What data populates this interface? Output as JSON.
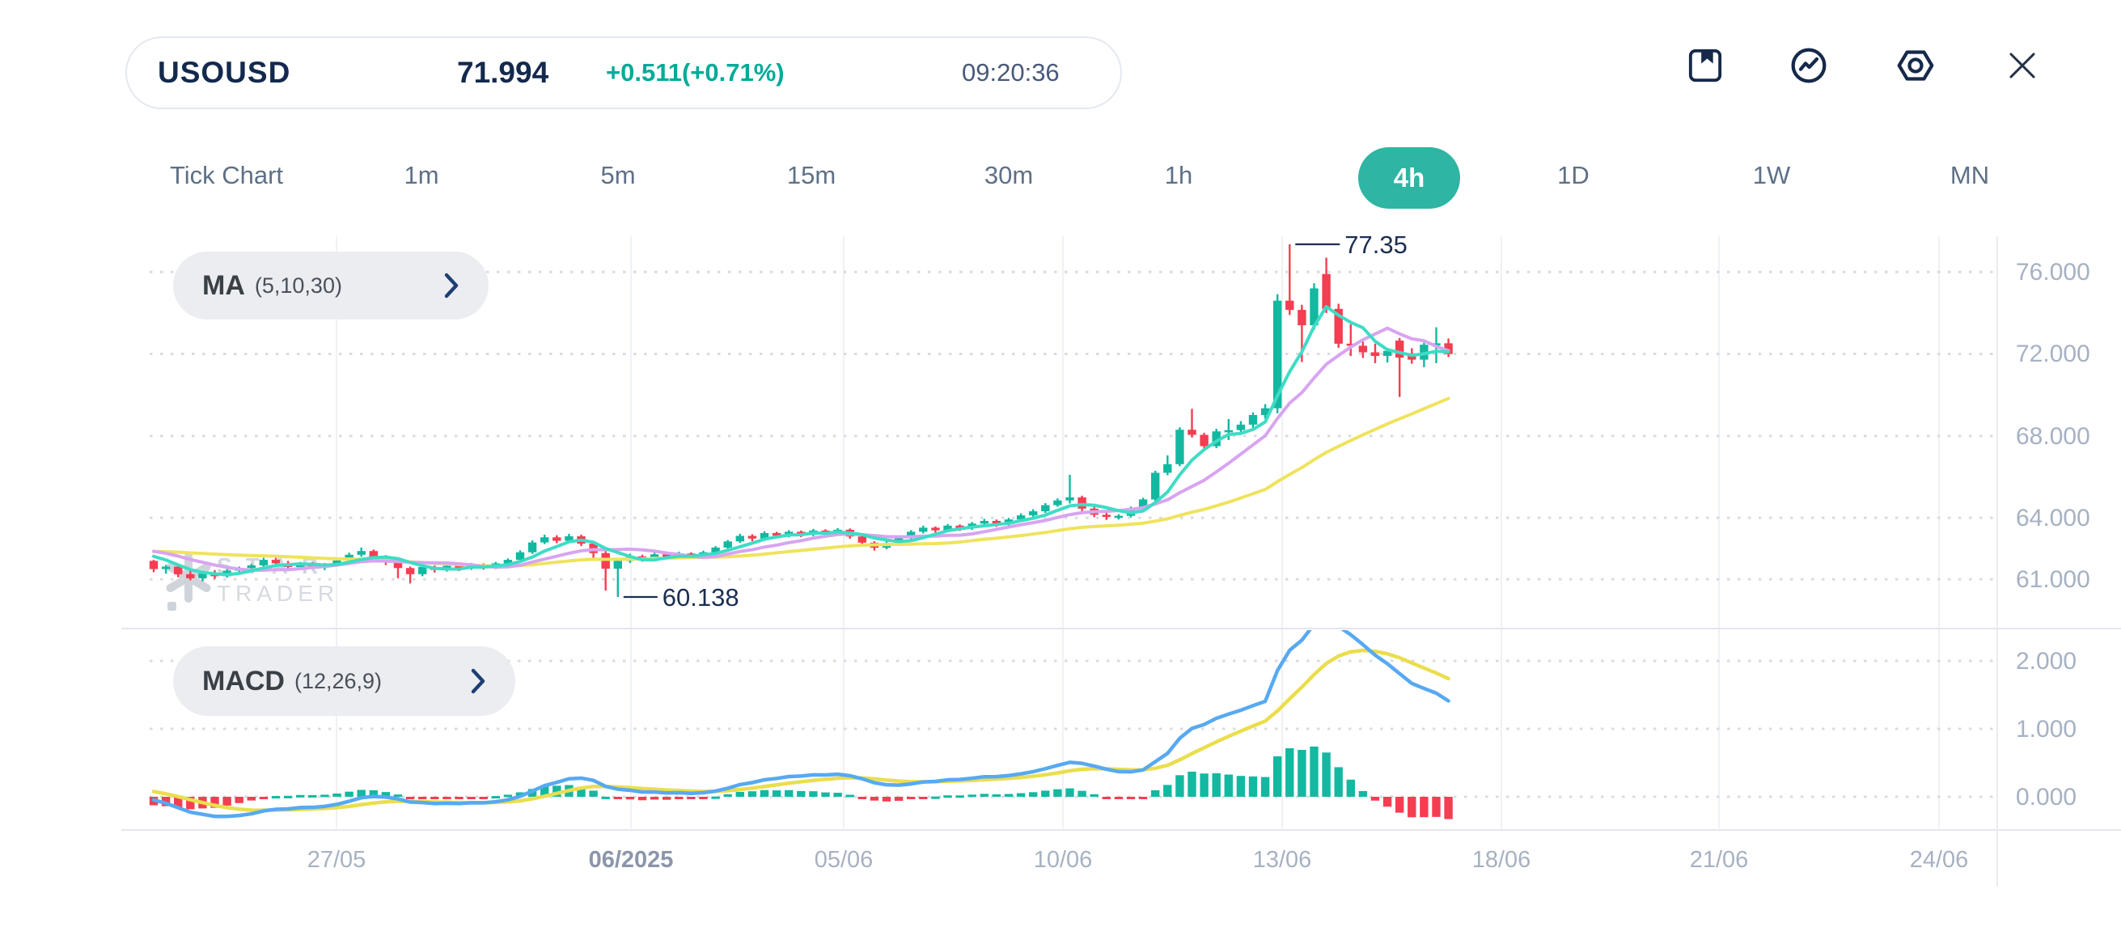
{
  "header": {
    "symbol": "USOUSD",
    "price": "71.994",
    "change": "+0.511(+0.71%)",
    "time": "09:20:36"
  },
  "toolbar": {
    "icons": [
      "bookmark-icon",
      "indicator-circle-icon",
      "settings-hexagon-icon",
      "close-icon"
    ]
  },
  "timeframes": {
    "items": [
      "Tick Chart",
      "1m",
      "5m",
      "15m",
      "30m",
      "1h",
      "4h",
      "1D",
      "1W",
      "MN"
    ],
    "selected": "4h"
  },
  "indicators": {
    "ma": {
      "label": "MA",
      "params": "(5,10,30)"
    },
    "macd": {
      "label": "MACD",
      "params": "(12,26,9)"
    }
  },
  "watermark": {
    "line1": "STAR",
    "line2": "TRADER"
  },
  "chart_data": {
    "type": "candlestick",
    "symbol": "USOUSD",
    "timeframe": "4h",
    "legend": "MA(5,10,30) overlay, MACD(12,26,9) sub-chart",
    "price_axis_ticks": [
      "76.000",
      "72.000",
      "68.000",
      "64.000",
      "61.000"
    ],
    "macd_axis_ticks": [
      "2.000",
      "1.000",
      "0.000"
    ],
    "x_axis_labels": [
      "27/05",
      "06/2025",
      "05/06",
      "10/06",
      "13/06",
      "18/06",
      "21/06",
      "24/06"
    ],
    "high_label": "77.35",
    "low_label": "60.138",
    "ma_periods": [
      5,
      10,
      30
    ],
    "macd_params": [
      12,
      26,
      9
    ],
    "colors": {
      "up": "#13b8a1",
      "down": "#f53e51",
      "ma5": "#3edcc5",
      "ma10": "#d8a4f0",
      "ma30": "#efe35e",
      "macd_line": "#57a9f2",
      "signal_line": "#eade4d",
      "grid_dotted": "#d8dce2",
      "grid_vertical": "#eef1f4",
      "separator": "#e3e7ec",
      "axis_line": "#e9ecf0",
      "annotation": "#1b2e52"
    },
    "lead_in_closes": [
      61.9,
      61.95,
      62.0,
      62.1,
      62.05,
      62.15,
      62.2,
      62.3,
      62.25,
      62.35,
      62.3,
      62.4,
      62.45,
      62.5,
      62.45,
      62.55,
      62.6,
      62.55,
      62.65,
      62.6,
      62.7,
      62.65,
      62.6,
      62.7,
      62.6,
      62.55,
      62.5,
      62.45,
      62.2,
      61.95
    ],
    "candles": [
      [
        61.9,
        61.95,
        61.35,
        61.5
      ],
      [
        61.5,
        61.7,
        61.28,
        61.62
      ],
      [
        61.62,
        61.68,
        61.1,
        61.25
      ],
      [
        61.25,
        61.42,
        60.95,
        61.05
      ],
      [
        61.05,
        61.35,
        60.9,
        61.28
      ],
      [
        61.28,
        61.45,
        61.02,
        61.15
      ],
      [
        61.15,
        61.5,
        61.08,
        61.42
      ],
      [
        61.42,
        61.62,
        61.3,
        61.55
      ],
      [
        61.55,
        61.75,
        61.42,
        61.68
      ],
      [
        61.68,
        62.05,
        61.6,
        61.95
      ],
      [
        61.95,
        62.05,
        61.68,
        61.78
      ],
      [
        61.78,
        61.9,
        61.5,
        61.6
      ],
      [
        61.6,
        61.85,
        61.52,
        61.76
      ],
      [
        61.76,
        61.85,
        61.5,
        61.6
      ],
      [
        61.6,
        61.8,
        61.45,
        61.72
      ],
      [
        61.72,
        62.0,
        61.64,
        61.92
      ],
      [
        61.92,
        62.3,
        61.85,
        62.2
      ],
      [
        62.2,
        62.55,
        62.1,
        62.38
      ],
      [
        62.38,
        62.45,
        62.0,
        62.1
      ],
      [
        62.1,
        62.18,
        61.7,
        61.82
      ],
      [
        61.82,
        61.9,
        61.05,
        61.55
      ],
      [
        61.55,
        61.62,
        60.8,
        61.25
      ],
      [
        61.25,
        61.7,
        61.15,
        61.6
      ],
      [
        61.6,
        61.68,
        61.33,
        61.46
      ],
      [
        61.46,
        61.75,
        61.38,
        61.66
      ],
      [
        61.66,
        61.72,
        61.4,
        61.54
      ],
      [
        61.54,
        61.8,
        61.46,
        61.72
      ],
      [
        61.72,
        61.78,
        61.47,
        61.58
      ],
      [
        61.58,
        61.85,
        61.5,
        61.78
      ],
      [
        61.78,
        62.02,
        61.7,
        61.95
      ],
      [
        61.95,
        62.42,
        61.88,
        62.32
      ],
      [
        62.32,
        62.9,
        62.24,
        62.8
      ],
      [
        62.8,
        63.18,
        62.72,
        63.05
      ],
      [
        63.05,
        63.15,
        62.76,
        62.88
      ],
      [
        62.88,
        63.22,
        62.8,
        63.1
      ],
      [
        63.1,
        63.18,
        62.62,
        62.74
      ],
      [
        62.74,
        62.85,
        61.95,
        62.28
      ],
      [
        62.28,
        62.38,
        60.45,
        61.52
      ],
      [
        61.52,
        62.0,
        60.138,
        61.9
      ],
      [
        61.9,
        62.25,
        61.8,
        62.12
      ],
      [
        62.12,
        62.2,
        61.86,
        61.97
      ],
      [
        61.97,
        62.3,
        61.9,
        62.22
      ],
      [
        62.22,
        62.3,
        61.96,
        62.07
      ],
      [
        62.07,
        62.35,
        62.0,
        62.26
      ],
      [
        62.26,
        62.32,
        62.0,
        62.11
      ],
      [
        62.11,
        62.4,
        62.04,
        62.32
      ],
      [
        62.32,
        62.62,
        62.25,
        62.55
      ],
      [
        62.55,
        62.92,
        62.48,
        62.85
      ],
      [
        62.85,
        63.22,
        62.78,
        63.12
      ],
      [
        63.12,
        63.2,
        62.86,
        62.99
      ],
      [
        62.99,
        63.35,
        62.91,
        63.26
      ],
      [
        63.26,
        63.32,
        63.0,
        63.13
      ],
      [
        63.13,
        63.4,
        63.05,
        63.32
      ],
      [
        63.32,
        63.38,
        63.06,
        63.19
      ],
      [
        63.19,
        63.46,
        63.11,
        63.38
      ],
      [
        63.38,
        63.44,
        63.1,
        63.23
      ],
      [
        63.23,
        63.5,
        63.15,
        63.42
      ],
      [
        63.42,
        63.48,
        62.98,
        63.09
      ],
      [
        63.09,
        63.16,
        62.68,
        62.79
      ],
      [
        62.79,
        62.86,
        62.4,
        62.54
      ],
      [
        62.54,
        62.85,
        62.47,
        62.76
      ],
      [
        62.76,
        63.1,
        62.69,
        63.02
      ],
      [
        63.02,
        63.4,
        62.94,
        63.32
      ],
      [
        63.32,
        63.62,
        63.24,
        63.52
      ],
      [
        63.52,
        63.58,
        63.26,
        63.39
      ],
      [
        63.39,
        63.7,
        63.31,
        63.62
      ],
      [
        63.62,
        63.68,
        63.36,
        63.49
      ],
      [
        63.49,
        63.8,
        63.41,
        63.72
      ],
      [
        63.72,
        63.95,
        63.64,
        63.85
      ],
      [
        63.85,
        63.92,
        63.56,
        63.69
      ],
      [
        63.69,
        64.0,
        63.61,
        63.92
      ],
      [
        63.92,
        64.22,
        63.84,
        64.12
      ],
      [
        64.12,
        64.42,
        64.04,
        64.32
      ],
      [
        64.32,
        64.72,
        64.24,
        64.62
      ],
      [
        64.62,
        64.95,
        64.54,
        64.85
      ],
      [
        64.85,
        66.1,
        64.7,
        65.0
      ],
      [
        65.0,
        65.08,
        64.33,
        64.45
      ],
      [
        64.45,
        64.55,
        64.03,
        64.15
      ],
      [
        64.15,
        64.25,
        63.9,
        64.05
      ],
      [
        64.05,
        64.18,
        63.92,
        64.1
      ],
      [
        64.1,
        64.55,
        64.02,
        64.48
      ],
      [
        64.48,
        64.98,
        64.4,
        64.9
      ],
      [
        64.9,
        66.3,
        64.82,
        66.2
      ],
      [
        66.2,
        67.05,
        66.08,
        66.62
      ],
      [
        66.62,
        68.42,
        66.52,
        68.3
      ],
      [
        68.3,
        69.32,
        67.92,
        68.05
      ],
      [
        68.05,
        68.15,
        67.33,
        67.5
      ],
      [
        67.5,
        68.35,
        67.4,
        68.22
      ],
      [
        68.22,
        68.82,
        67.8,
        68.28
      ],
      [
        68.28,
        68.72,
        68.08,
        68.55
      ],
      [
        68.55,
        69.15,
        68.38,
        69.02
      ],
      [
        69.02,
        69.55,
        68.84,
        69.35
      ],
      [
        69.35,
        74.92,
        69.1,
        74.6
      ],
      [
        74.6,
        77.35,
        73.9,
        74.15
      ],
      [
        74.15,
        74.4,
        71.6,
        73.4
      ],
      [
        73.4,
        75.45,
        73.18,
        75.2
      ],
      [
        75.9,
        76.7,
        74.0,
        74.2
      ],
      [
        74.2,
        74.45,
        72.3,
        72.5
      ],
      [
        72.5,
        73.45,
        71.9,
        72.4
      ],
      [
        72.4,
        72.6,
        71.8,
        72.08
      ],
      [
        72.08,
        72.5,
        71.55,
        71.9
      ],
      [
        71.9,
        72.3,
        71.58,
        72.15
      ],
      [
        72.65,
        72.78,
        69.9,
        71.82
      ],
      [
        71.95,
        72.28,
        71.52,
        71.72
      ],
      [
        71.72,
        72.55,
        71.35,
        72.45
      ],
      [
        72.45,
        73.3,
        71.55,
        72.52
      ],
      [
        72.52,
        72.75,
        71.85,
        71.994
      ]
    ]
  }
}
